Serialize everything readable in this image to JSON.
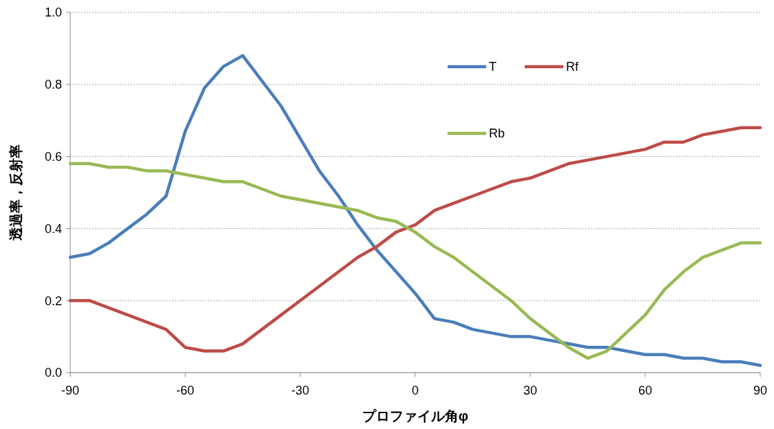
{
  "chart_data": {
    "type": "line",
    "xlabel": "プロファイル角φ",
    "ylabel": "透過率，反射率",
    "x": [
      -90,
      -85,
      -80,
      -75,
      -70,
      -65,
      -60,
      -55,
      -50,
      -45,
      -40,
      -35,
      -30,
      -25,
      -20,
      -15,
      -10,
      -5,
      0,
      5,
      10,
      15,
      20,
      25,
      30,
      35,
      40,
      45,
      50,
      55,
      60,
      65,
      70,
      75,
      80,
      85,
      90
    ],
    "series": [
      {
        "name": "T",
        "color": "#4a7ebb",
        "values": [
          0.32,
          0.33,
          0.36,
          0.4,
          0.44,
          0.49,
          0.67,
          0.79,
          0.85,
          0.88,
          0.81,
          0.74,
          0.65,
          0.56,
          0.49,
          0.41,
          0.34,
          0.28,
          0.22,
          0.15,
          0.14,
          0.12,
          0.11,
          0.1,
          0.1,
          0.09,
          0.08,
          0.07,
          0.07,
          0.06,
          0.05,
          0.05,
          0.04,
          0.04,
          0.03,
          0.03,
          0.02
        ]
      },
      {
        "name": "Rf",
        "color": "#be4b48",
        "values": [
          0.2,
          0.2,
          0.18,
          0.16,
          0.14,
          0.12,
          0.07,
          0.06,
          0.06,
          0.08,
          0.12,
          0.16,
          0.2,
          0.24,
          0.28,
          0.32,
          0.35,
          0.39,
          0.41,
          0.45,
          0.47,
          0.49,
          0.51,
          0.53,
          0.54,
          0.56,
          0.58,
          0.59,
          0.6,
          0.61,
          0.62,
          0.64,
          0.64,
          0.66,
          0.67,
          0.68,
          0.68
        ]
      },
      {
        "name": "Rb",
        "color": "#98b954",
        "values": [
          0.58,
          0.58,
          0.57,
          0.57,
          0.56,
          0.56,
          0.55,
          0.54,
          0.53,
          0.53,
          0.51,
          0.49,
          0.48,
          0.47,
          0.46,
          0.45,
          0.43,
          0.42,
          0.39,
          0.35,
          0.32,
          0.28,
          0.24,
          0.2,
          0.15,
          0.11,
          0.07,
          0.04,
          0.06,
          0.11,
          0.16,
          0.23,
          0.28,
          0.32,
          0.34,
          0.36,
          0.36
        ]
      }
    ],
    "xlim": [
      -90,
      90
    ],
    "xticks": [
      -90,
      -60,
      -30,
      0,
      30,
      60,
      90
    ],
    "ylim": [
      0,
      1
    ],
    "yticks": [
      {
        "value": 0,
        "label": "0.0"
      },
      {
        "value": 0.2,
        "label": "0.2"
      },
      {
        "value": 0.4,
        "label": "0.4"
      },
      {
        "value": 0.6,
        "label": "0.6"
      },
      {
        "value": 0.8,
        "label": "0.8"
      },
      {
        "value": 1,
        "label": "1.0"
      }
    ],
    "grid": "y",
    "legend": "top right",
    "marker": "none",
    "line_style": "solid"
  }
}
